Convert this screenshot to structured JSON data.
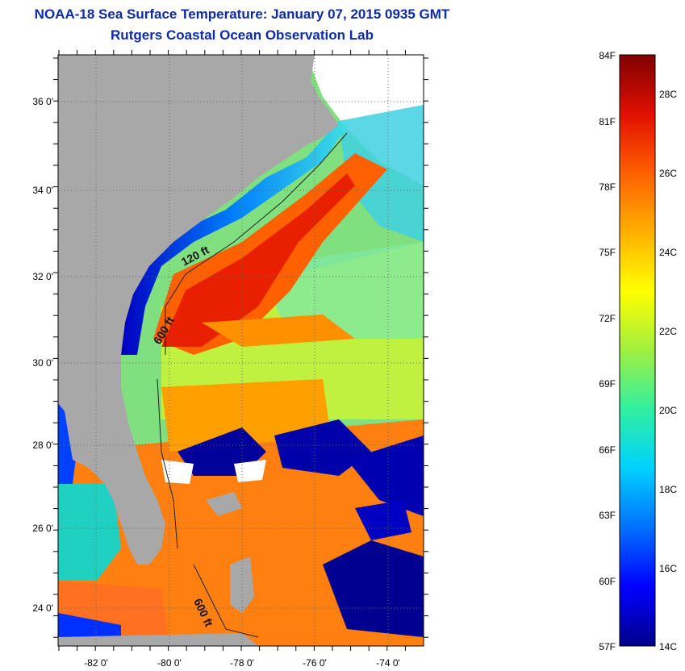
{
  "title": {
    "line1": "NOAA-18 Sea Surface Temperature:  January 07, 2015 0935 GMT",
    "line2": "Rutgers Coastal Ocean Observation Lab"
  },
  "map": {
    "lat_labels": [
      "36 0'",
      "34 0'",
      "32 0'",
      "30 0'",
      "28 0'",
      "26 0'",
      "24 0'"
    ],
    "lon_labels": [
      "-82 0'",
      "-80 0'",
      "-78 0'",
      "-76 0'",
      "-74 0'"
    ],
    "contour_labels": [
      "120 ft",
      "600 ft",
      "600 ft"
    ],
    "land_color": "#a8a8a8",
    "cold_color": "#00008b",
    "warm_color": "#e53000"
  },
  "colorbar": {
    "f_labels": [
      "84F",
      "81F",
      "78F",
      "75F",
      "72F",
      "69F",
      "66F",
      "63F",
      "60F",
      "57F"
    ],
    "c_labels": [
      "28C",
      "26C",
      "24C",
      "22C",
      "20C",
      "18C",
      "16C",
      "14C"
    ],
    "stops": [
      "#00008b",
      "#0000ff",
      "#0070ff",
      "#00d0ff",
      "#30f0a0",
      "#a0f040",
      "#ffff00",
      "#ffb000",
      "#ff6000",
      "#e01000",
      "#800000"
    ]
  }
}
